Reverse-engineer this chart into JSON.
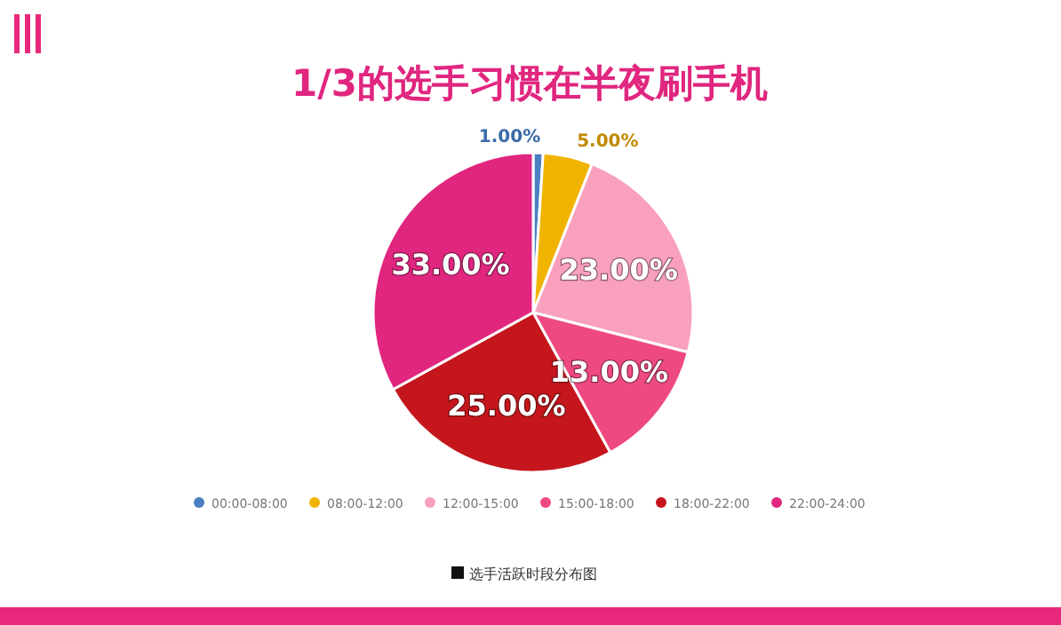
{
  "chart_data": {
    "type": "pie",
    "title": "1/3的选手习惯在半夜刷手机",
    "categories": [
      "00:00-08:00",
      "08:00-12:00",
      "12:00-15:00",
      "15:00-18:00",
      "18:00-22:00",
      "22:00-24:00"
    ],
    "values": [
      1,
      5,
      23,
      13,
      25,
      33
    ],
    "colors": [
      "#4a7fc1",
      "#f0b400",
      "#f9a0bc",
      "#ee4a7f",
      "#c4161c",
      "#e0267f"
    ],
    "value_labels": [
      "1.00%",
      "5.00%",
      "23.00%",
      "13.00%",
      "25.00%",
      "33.00%"
    ],
    "legend": "bottom",
    "annotations": [
      "选手活跃时段分布图"
    ]
  }
}
